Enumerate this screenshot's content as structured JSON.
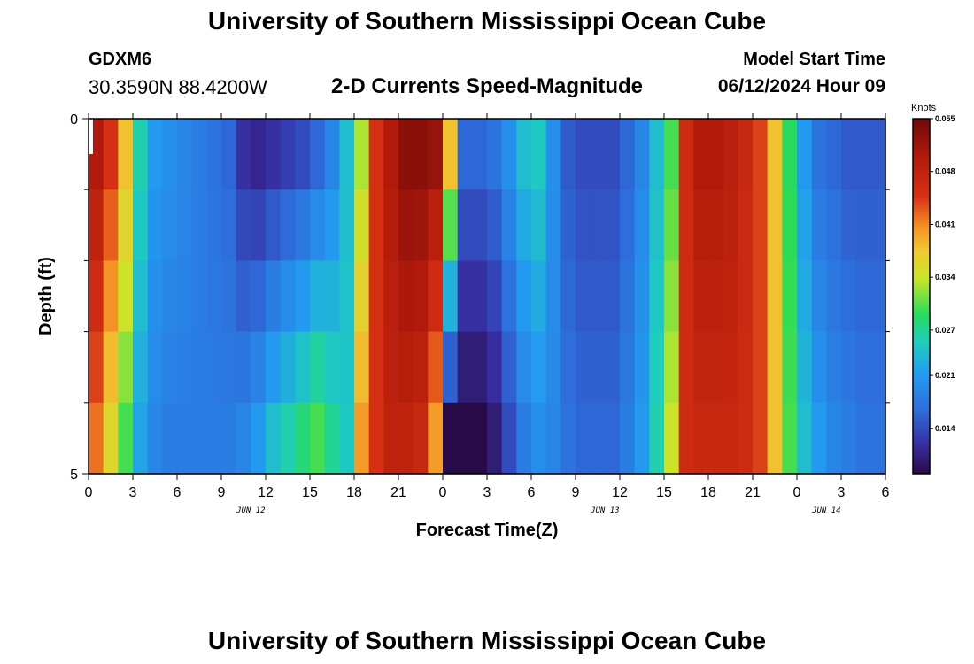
{
  "header": {
    "title": "University of Southern Mississippi Ocean Cube",
    "station_id": "GDXM6",
    "station_coords": "30.3590N  88.4200W",
    "product": "2-D Currents Speed-Magnitude",
    "model_start_label": "Model Start Time",
    "model_start_value": "06/12/2024 Hour 09"
  },
  "footer": {
    "title": "University of Southern Mississippi Ocean Cube"
  },
  "chart_data": {
    "type": "heatmap",
    "title": "2-D Currents Speed-Magnitude",
    "xlabel": "Forecast Time(Z)",
    "ylabel": "Depth (ft)",
    "x_hours": [
      0,
      54
    ],
    "x_tick_labels": [
      "0",
      "3",
      "6",
      "9",
      "12",
      "15",
      "18",
      "21",
      "0",
      "3",
      "6",
      "9",
      "12",
      "15",
      "18",
      "21",
      "0",
      "3",
      "6"
    ],
    "date_labels": [
      {
        "label": "JUN 12",
        "hour": 11
      },
      {
        "label": "JUN 13",
        "hour": 35
      },
      {
        "label": "JUN 14",
        "hour": 50
      }
    ],
    "ylim": [
      0,
      5
    ],
    "y_tick_labels": [
      "0",
      "5"
    ],
    "colorbar": {
      "unit": "Knots",
      "min": 0.008,
      "max": 0.055,
      "tick_labels": [
        "0.055",
        "0.048",
        "0.041",
        "0.034",
        "0.027",
        "0.021",
        "0.014"
      ]
    },
    "depth_rows": 5,
    "hour_columns": 54,
    "surface_profile_knots": [
      0.05,
      0.045,
      0.038,
      0.026,
      0.021,
      0.02,
      0.019,
      0.018,
      0.017,
      0.016,
      0.012,
      0.011,
      0.012,
      0.013,
      0.014,
      0.016,
      0.019,
      0.024,
      0.033,
      0.045,
      0.05,
      0.053,
      0.053,
      0.052,
      0.038,
      0.016,
      0.016,
      0.017,
      0.02,
      0.024,
      0.025,
      0.02,
      0.015,
      0.014,
      0.014,
      0.014,
      0.016,
      0.019,
      0.024,
      0.03,
      0.046,
      0.05,
      0.05,
      0.049,
      0.047,
      0.044,
      0.038,
      0.029,
      0.021,
      0.017,
      0.016,
      0.015,
      0.015,
      0.015
    ],
    "bottom_profile_knots": [
      0.042,
      0.036,
      0.03,
      0.022,
      0.019,
      0.018,
      0.018,
      0.018,
      0.018,
      0.018,
      0.019,
      0.021,
      0.024,
      0.026,
      0.028,
      0.03,
      0.027,
      0.025,
      0.04,
      0.045,
      0.048,
      0.048,
      0.047,
      0.04,
      0.008,
      0.008,
      0.008,
      0.01,
      0.014,
      0.018,
      0.02,
      0.019,
      0.017,
      0.016,
      0.016,
      0.016,
      0.018,
      0.021,
      0.026,
      0.034,
      0.046,
      0.047,
      0.047,
      0.047,
      0.046,
      0.044,
      0.038,
      0.03,
      0.024,
      0.021,
      0.019,
      0.018,
      0.017,
      0.017
    ]
  }
}
